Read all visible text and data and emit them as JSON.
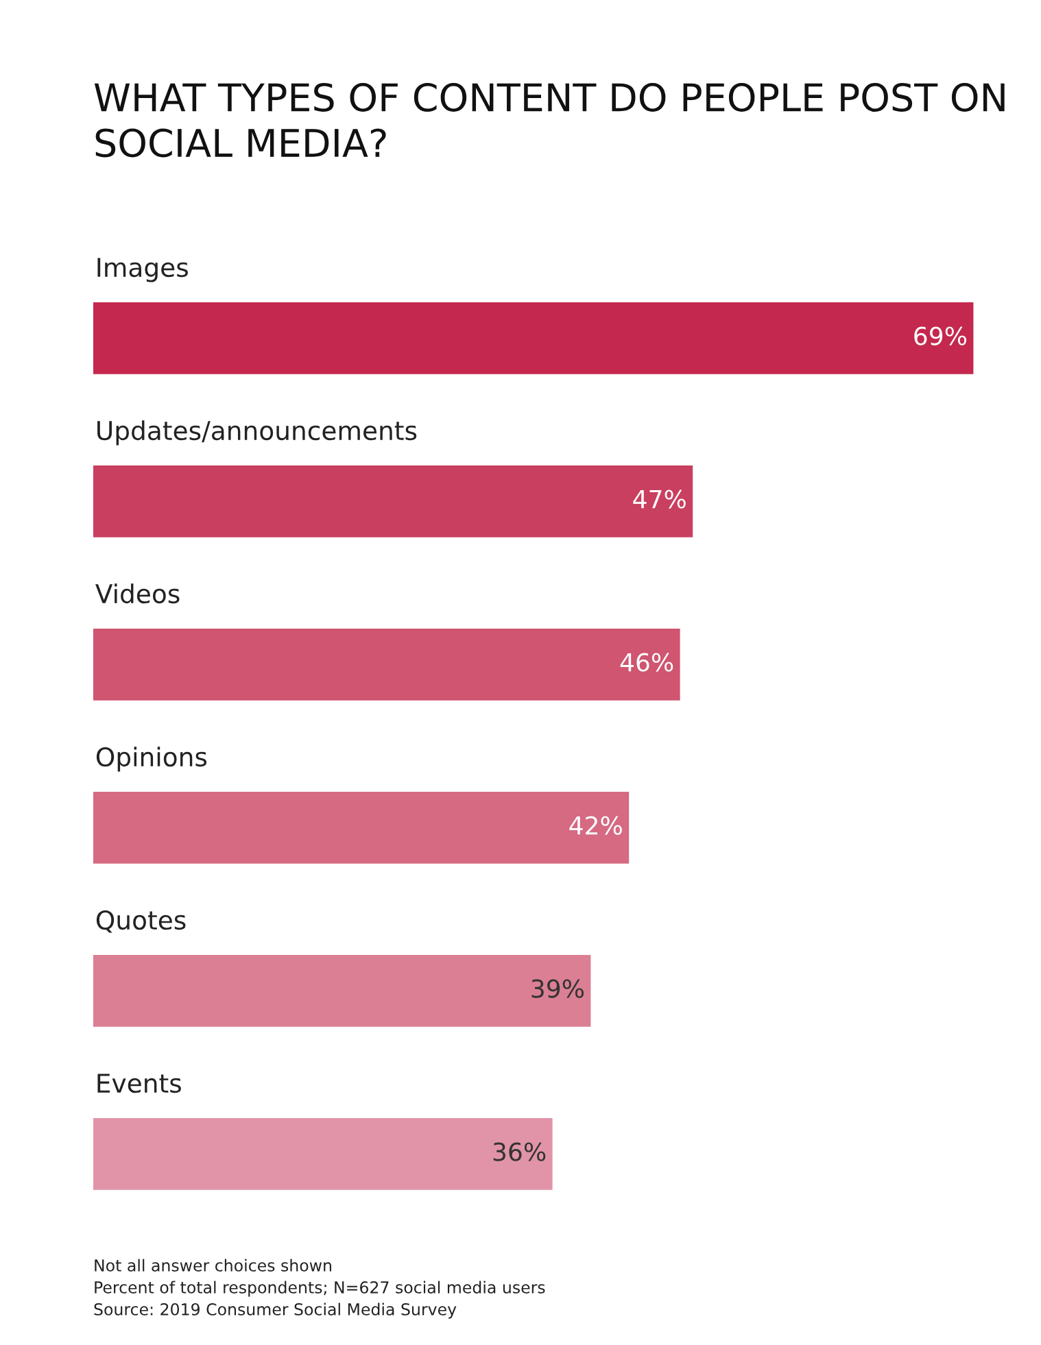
{
  "chart_data": {
    "type": "bar",
    "orientation": "horizontal",
    "title": "WHAT TYPES OF CONTENT DO PEOPLE POST ON SOCIAL MEDIA?",
    "categories": [
      "Images",
      "Updates/announcements",
      "Videos",
      "Opinions",
      "Quotes",
      "Events"
    ],
    "values": [
      69,
      47,
      46,
      42,
      39,
      36
    ],
    "value_labels": [
      "69%",
      "47%",
      "46%",
      "42%",
      "39%",
      "36%"
    ],
    "colors": [
      "#c4284e",
      "#c93f5f",
      "#cf5570",
      "#d56a82",
      "#db7f94",
      "#e194a7"
    ],
    "annotations": [
      "Not all answer choices shown",
      "Percent of total respondents; N=627 social media users",
      "Source: 2019 Consumer Social Media Survey"
    ]
  }
}
